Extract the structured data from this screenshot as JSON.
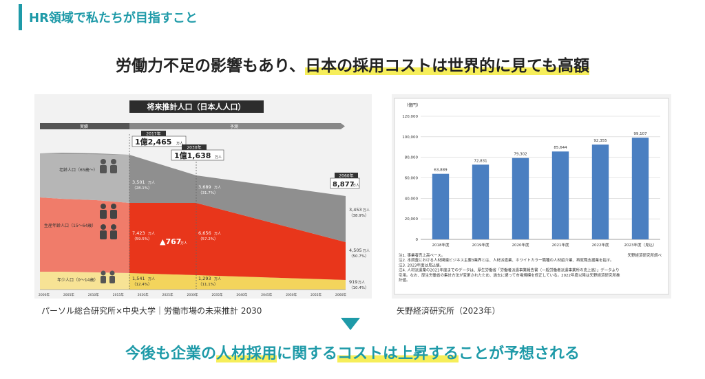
{
  "section_title": "HR領域で私たちが目指すこと",
  "headline": {
    "pre": "労働力不足の影響もあり、",
    "highlight": "日本の採用コストは世界的に見ても高額"
  },
  "conclusion": {
    "p1": "今後も企業の",
    "h1": "人材採用",
    "p2": "に関する",
    "h2": "コストは上昇する",
    "p3": "ことが予想される"
  },
  "left_chart": {
    "title": "将来推計人口（日本人人口）",
    "phase_actual": "実績",
    "phase_forecast": "予測",
    "callouts": [
      {
        "year": "2017年",
        "big": "1億2,465",
        "unit": "万人"
      },
      {
        "year": "2030年",
        "big": "1億1,638",
        "unit": "万人"
      },
      {
        "year": "2060年",
        "big": "8,877",
        "unit": "万人"
      }
    ],
    "band_labels": {
      "elderly": "老齢人口（65歳〜）",
      "working": "生産年齢人口（15〜64歳）",
      "youth": "年少人口（0〜14歳）"
    },
    "values": [
      {
        "v": "3,501",
        "unit": "万人",
        "pct": "（28.1%）"
      },
      {
        "v": "3,689",
        "unit": "万人",
        "pct": "（31.7%）"
      },
      {
        "v": "3,453",
        "unit": "万人",
        "pct": "（38.9%）"
      },
      {
        "v": "7,423",
        "unit": "万人",
        "pct": "（59.5%）"
      },
      {
        "v": "6,656",
        "unit": "万人",
        "pct": "（57.2%）"
      },
      {
        "v": "4,505",
        "unit": "万人",
        "pct": "（50.7%）"
      },
      {
        "v": "1,541",
        "unit": "万人",
        "pct": "（12.4%）"
      },
      {
        "v": "1,293",
        "unit": "万人",
        "pct": "（11.1%）"
      },
      {
        "v": "919",
        "unit": "万人",
        "pct": "（10.4%）"
      }
    ],
    "decrease": {
      "v": "▲767",
      "unit": "万人"
    },
    "years": [
      "2000年",
      "2005年",
      "2010年",
      "2015年",
      "2020年",
      "2025年",
      "2030年",
      "2035年",
      "2040年",
      "2045年",
      "2050年",
      "2055年",
      "2060年"
    ]
  },
  "left_caption": "パーソル総合研究所×中央大学｜労働市場の未来推計 2030",
  "right_caption": "矢野経済研究所（2023年）",
  "chart_data": [
    {
      "type": "area",
      "title": "将来推計人口（日本人人口）",
      "x": [
        2017,
        2030,
        2060
      ],
      "series": [
        {
          "name": "年少人口（0〜14歳）",
          "values": [
            1541,
            1293,
            919
          ]
        },
        {
          "name": "生産年齢人口（15〜64歳）",
          "values": [
            7423,
            6656,
            4505
          ]
        },
        {
          "name": "老齢人口（65歳〜）",
          "values": [
            3501,
            3689,
            3453
          ]
        }
      ],
      "totals": [
        12465,
        11638,
        8877
      ]
    },
    {
      "type": "bar",
      "unit_label": "（億円）",
      "categories": [
        "2018年度",
        "2019年度",
        "2020年度",
        "2021年度",
        "2022年度",
        "2023年度（見込）"
      ],
      "values": [
        63889,
        72831,
        79302,
        85644,
        92355,
        99107
      ],
      "value_labels": [
        "63,889",
        "72,831",
        "79,302",
        "85,644",
        "92,355",
        "99,107"
      ],
      "yticks": [
        "0",
        "20,000",
        "40,000",
        "60,000",
        "80,000",
        "100,000",
        "120,000"
      ],
      "ylim": [
        0,
        120000
      ],
      "bar_color": "#4a7fc1",
      "notes": [
        "注1. 事業者売上高ベース。",
        "注2. 本調査における人材関連ビジネス主要3業界とは、人材派遣業、ホワイトカラー職種の人材紹介業、再就職支援業を指す。",
        "注3. 2023年度は見込値。",
        "注4. 人材派遣業の2021年度までのデータは、厚生労働省「労働者派遣事業報告書（一般労働者派遣事業所の売上高）」データより",
        "引用。なお、厚生労働省の集計方法が変更されたため、過去に遡って市場規模を修正している。2022年度以降は矢野経済研究所推",
        "計値。"
      ],
      "source_note": "矢野経済研究所調べ"
    }
  ]
}
